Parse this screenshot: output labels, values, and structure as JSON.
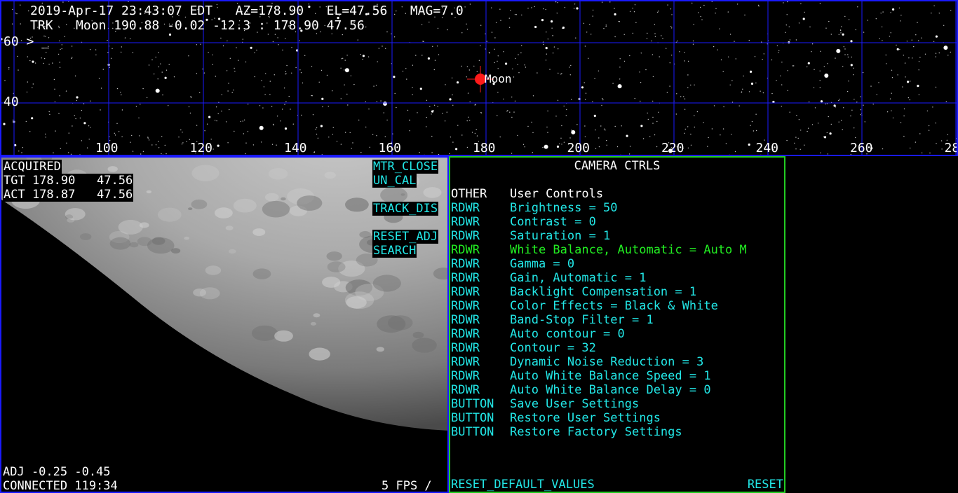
{
  "sky": {
    "status_line1": "2019-Apr-17 23:43:07 EDT   AZ=178.90   EL=47.56   MAG=7.0",
    "status_line2": "TRK   Moon 190.88 -0.02 -12.3 : 178.90 47.56",
    "prompt": "60 > _",
    "el_label_40": "40",
    "az_ticks": [
      "100",
      "120",
      "140",
      "160",
      "180",
      "200",
      "220",
      "240",
      "260",
      "28"
    ],
    "target_name": "Moon",
    "colors": {
      "grid": "#1a1aff",
      "target": "#ff1a1a"
    }
  },
  "camera": {
    "acquired": "ACQUIRED",
    "tgt": "TGT 178.90   47.56",
    "act": "ACT 178.87   47.56",
    "adj": "ADJ -0.25 -0.45",
    "connected": "CONNECTED 119:34",
    "fps": "5 FPS /",
    "buttons": {
      "mtr_close": "MTR_CLOSE",
      "un_cal": "UN_CAL",
      "track_dis": "TRACK_DIS",
      "reset_adj": "RESET_ADJ",
      "search": "SEARCH"
    }
  },
  "controls": {
    "title": "CAMERA CTRLS",
    "section_kind": "OTHER",
    "section_name": "User Controls",
    "rows": [
      {
        "kind": "RDWR",
        "text": "Brightness = 50"
      },
      {
        "kind": "RDWR",
        "text": "Contrast = 0"
      },
      {
        "kind": "RDWR",
        "text": "Saturation = 1"
      },
      {
        "kind": "RDWR",
        "text": "White Balance, Automatic = Auto M"
      },
      {
        "kind": "RDWR",
        "text": "Gamma = 0"
      },
      {
        "kind": "RDWR",
        "text": "Gain, Automatic = 1"
      },
      {
        "kind": "RDWR",
        "text": "Backlight Compensation = 1"
      },
      {
        "kind": "RDWR",
        "text": "Color Effects = Black & White"
      },
      {
        "kind": "RDWR",
        "text": "Band-Stop Filter = 1"
      },
      {
        "kind": "RDWR",
        "text": "Auto contour = 0"
      },
      {
        "kind": "RDWR",
        "text": "Contour = 32"
      },
      {
        "kind": "RDWR",
        "text": "Dynamic Noise Reduction = 3"
      },
      {
        "kind": "RDWR",
        "text": "Auto White Balance Speed = 1"
      },
      {
        "kind": "RDWR",
        "text": "Auto White Balance Delay = 0"
      },
      {
        "kind": "BUTTON",
        "text": "Save User Settings"
      },
      {
        "kind": "BUTTON",
        "text": "Restore User Settings"
      },
      {
        "kind": "BUTTON",
        "text": "Restore Factory Settings"
      }
    ],
    "reset_default": "RESET_DEFAULT_VALUES",
    "reset": "RESET",
    "colors": {
      "normal": "#22e6e6",
      "highlight": "#22ee22",
      "border": "#22cc22"
    }
  }
}
